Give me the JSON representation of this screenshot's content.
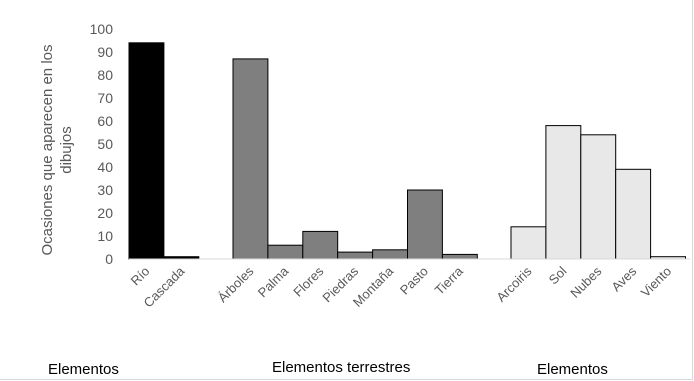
{
  "chart_data": {
    "type": "bar",
    "title": "",
    "ylabel": "Ocasiones que aparecen en los dibujos",
    "ylabel_lines": [
      "Ocasiones que aparecen en los",
      "dibujos"
    ],
    "ylim": [
      0,
      100
    ],
    "yticks": [
      0,
      10,
      20,
      30,
      40,
      50,
      60,
      70,
      80,
      90,
      100
    ],
    "grid": false,
    "legend": "none",
    "groups": [
      {
        "label": "Elementos",
        "color": "#000000",
        "categories": [
          "Río",
          "Cascada"
        ],
        "values": [
          94,
          1
        ]
      },
      {
        "label": "Elementos terrestres",
        "color": "#7f7f7f",
        "categories": [
          "Árboles",
          "Palma",
          "Flores",
          "Piedras",
          "Montaña",
          "Pasto",
          "Tierra"
        ],
        "values": [
          87,
          6,
          12,
          3,
          4,
          30,
          2
        ]
      },
      {
        "label": "Elementos",
        "color": "#e8e8e8",
        "categories": [
          "Arcoiris",
          "Sol",
          "Nubes",
          "Aves",
          "Viento"
        ],
        "values": [
          14,
          58,
          54,
          39,
          1
        ]
      }
    ]
  }
}
